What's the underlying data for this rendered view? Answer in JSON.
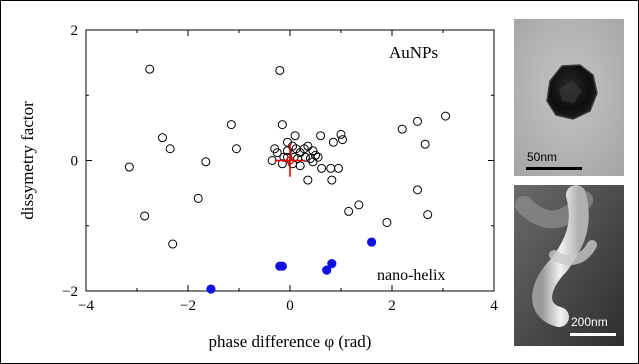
{
  "chart_data": {
    "type": "scatter",
    "xlabel": "phase difference φ (rad)",
    "ylabel": "dissymetry factor",
    "xlim": [
      -4,
      4
    ],
    "ylim": [
      -2,
      2
    ],
    "xticks": [
      "−4",
      "−2",
      "0",
      "2",
      "4"
    ],
    "yticks": [
      "−2",
      "0",
      "2"
    ],
    "grid": false,
    "series": [
      {
        "name": "AuNPs",
        "marker": "open-circle",
        "color": "#000000",
        "points": [
          [
            -2.75,
            1.4
          ],
          [
            -0.2,
            1.38
          ],
          [
            3.05,
            0.68
          ],
          [
            2.5,
            0.6
          ],
          [
            2.2,
            0.48
          ],
          [
            2.65,
            0.25
          ],
          [
            -2.5,
            0.35
          ],
          [
            -2.35,
            0.18
          ],
          [
            -1.15,
            0.55
          ],
          [
            -1.05,
            0.18
          ],
          [
            -1.65,
            -0.02
          ],
          [
            -3.15,
            -0.1
          ],
          [
            -1.8,
            -0.58
          ],
          [
            -2.85,
            -0.85
          ],
          [
            -2.3,
            -1.28
          ],
          [
            2.5,
            -0.45
          ],
          [
            2.7,
            -0.83
          ],
          [
            1.35,
            -0.68
          ],
          [
            1.15,
            -0.78
          ],
          [
            1.9,
            -0.95
          ],
          [
            0.6,
            0.38
          ],
          [
            0.85,
            0.28
          ],
          [
            1.0,
            0.4
          ],
          [
            1.03,
            0.32
          ],
          [
            0.95,
            -0.12
          ],
          [
            0.82,
            -0.3
          ],
          [
            0.35,
            -0.3
          ],
          [
            0.8,
            -0.12
          ],
          [
            0.62,
            -0.12
          ],
          [
            0.45,
            -0.02
          ],
          [
            0.3,
            0.05
          ],
          [
            0.2,
            0.12
          ],
          [
            0.15,
            0.03
          ],
          [
            0.28,
            0.18
          ],
          [
            0.45,
            0.15
          ],
          [
            0.5,
            0.08
          ],
          [
            0.55,
            0.05
          ],
          [
            0.4,
            0.03
          ],
          [
            0.35,
            0.22
          ],
          [
            0.1,
            0.38
          ],
          [
            0.05,
            0.22
          ],
          [
            0.12,
            0.18
          ],
          [
            -0.05,
            0.28
          ],
          [
            -0.15,
            0.55
          ],
          [
            -0.05,
            0.15
          ],
          [
            -0.12,
            0.05
          ],
          [
            -0.25,
            0.12
          ],
          [
            -0.35,
            0.0
          ],
          [
            -0.15,
            -0.05
          ],
          [
            0.05,
            -0.05
          ],
          [
            -0.05,
            0.05
          ],
          [
            0.08,
            0.05
          ],
          [
            0.2,
            -0.08
          ],
          [
            -0.3,
            0.18
          ]
        ]
      },
      {
        "name": "nano-helix",
        "marker": "filled-circle",
        "color": "#1010e0",
        "points": [
          [
            -1.55,
            -1.97
          ],
          [
            -0.2,
            -1.62
          ],
          [
            -0.15,
            -1.62
          ],
          [
            0.72,
            -1.68
          ],
          [
            0.82,
            -1.58
          ],
          [
            1.6,
            -1.25
          ]
        ]
      }
    ],
    "mean_marker": {
      "x": 0.0,
      "y": 0.0,
      "xerr": 0.3,
      "yerr": 0.25,
      "color": "#e00000"
    },
    "annotations": [
      {
        "text": "AuNPs",
        "color": "#000000"
      },
      {
        "text": "nano-helix",
        "color": "#1010e0"
      }
    ]
  },
  "images": {
    "top": {
      "scale_label": "50nm"
    },
    "bottom": {
      "scale_label": "200nm"
    }
  }
}
